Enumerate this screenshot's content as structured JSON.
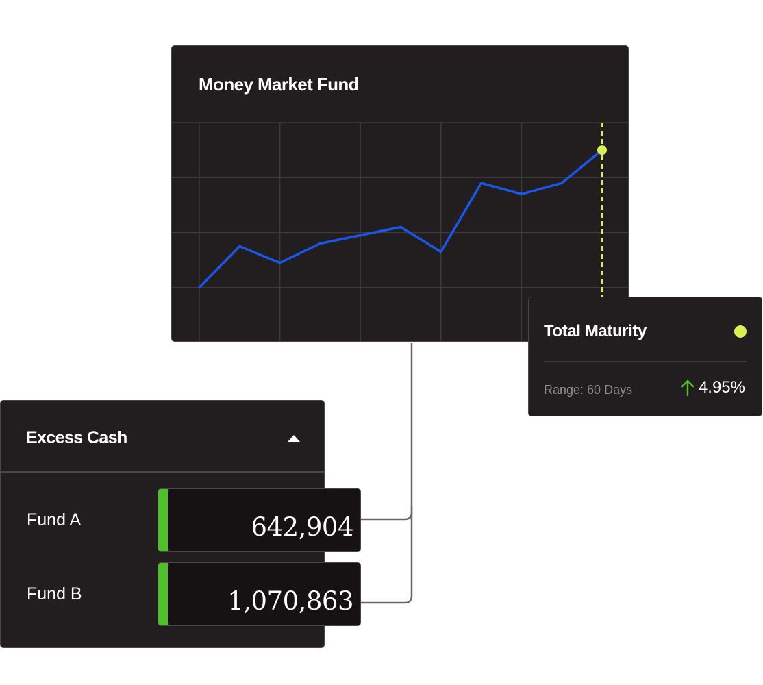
{
  "chart_card": {
    "title": "Money Market Fund"
  },
  "chart_data": {
    "type": "line",
    "title": "Money Market Fund",
    "x": [
      0,
      1,
      2,
      3,
      4,
      5,
      6,
      7,
      8,
      9,
      10
    ],
    "series": [
      {
        "values": [
          1.0,
          2.5,
          1.9,
          2.6,
          2.9,
          3.2,
          2.3,
          4.8,
          4.4,
          4.8,
          6.0
        ]
      }
    ],
    "xlim": [
      0,
      10.3
    ],
    "ylim": [
      -1.0,
      7.0
    ],
    "grid": true,
    "highlight_point_index": 10,
    "colors": {
      "line": "#1a56e8",
      "marker": "#d8ee55",
      "grid": "#3d393a"
    }
  },
  "maturity": {
    "title": "Total Maturity",
    "range_label": "Range: 60 Days",
    "change": "4.95%",
    "change_icon": "arrow-up-icon",
    "status_color": "#d8ee55",
    "change_color": "#4ec02a"
  },
  "excess_cash": {
    "title": "Excess Cash",
    "toggle_icon": "caret-up-icon",
    "funds": [
      {
        "label": "Fund A",
        "value": "642,904"
      },
      {
        "label": "Fund B",
        "value": "1,070,863"
      }
    ],
    "accent_color": "#4ec02a"
  }
}
